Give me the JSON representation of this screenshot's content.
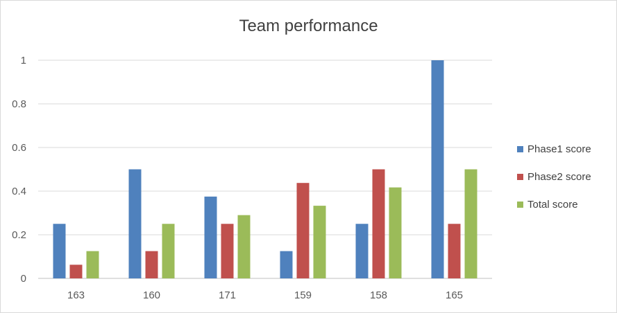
{
  "chart_data": {
    "type": "bar",
    "title": "Team performance",
    "categories": [
      "163",
      "160",
      "171",
      "159",
      "158",
      "165"
    ],
    "series": [
      {
        "name": "Phase1 score",
        "values": [
          0.25,
          0.5,
          0.375,
          0.125,
          0.25,
          1.0
        ],
        "color": "#4F81BD"
      },
      {
        "name": "Phase2 score",
        "values": [
          0.0625,
          0.125,
          0.25,
          0.4375,
          0.5,
          0.25
        ],
        "color": "#C0504D"
      },
      {
        "name": "Total score",
        "values": [
          0.125,
          0.25,
          0.29,
          0.333,
          0.417,
          0.5
        ],
        "color": "#9BBB59"
      }
    ],
    "ylim": [
      0,
      1
    ],
    "yticks": [
      "0",
      "0.2",
      "0.4",
      "0.6",
      "0.8",
      "1"
    ],
    "grid": true,
    "legend_position": "right"
  }
}
